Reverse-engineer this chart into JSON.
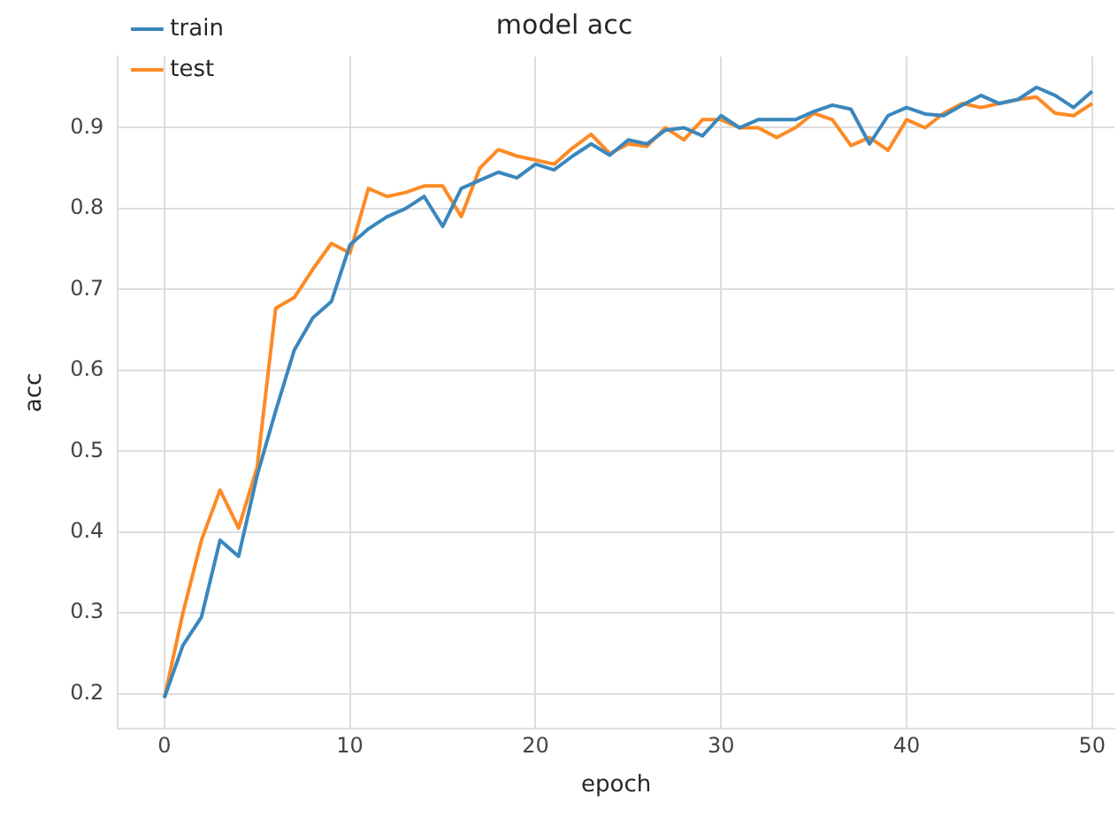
{
  "chart_data": {
    "type": "line",
    "title": "model acc",
    "xlabel": "epoch",
    "ylabel": "acc",
    "x": [
      0,
      1,
      2,
      3,
      4,
      5,
      6,
      7,
      8,
      9,
      10,
      11,
      12,
      13,
      14,
      15,
      16,
      17,
      18,
      19,
      20,
      21,
      22,
      23,
      24,
      25,
      26,
      27,
      28,
      29,
      30,
      31,
      32,
      33,
      34,
      35,
      36,
      37,
      38,
      39,
      40,
      41,
      42,
      43,
      44,
      45,
      46,
      47,
      48,
      49,
      50
    ],
    "series": [
      {
        "name": "train",
        "color": "#3a87bd",
        "values": [
          0.195,
          0.26,
          0.295,
          0.39,
          0.37,
          0.47,
          0.55,
          0.625,
          0.665,
          0.685,
          0.755,
          0.775,
          0.79,
          0.8,
          0.815,
          0.778,
          0.825,
          0.835,
          0.845,
          0.838,
          0.855,
          0.848,
          0.865,
          0.88,
          0.866,
          0.885,
          0.88,
          0.897,
          0.9,
          0.89,
          0.915,
          0.9,
          0.91,
          0.91,
          0.91,
          0.92,
          0.928,
          0.923,
          0.88,
          0.915,
          0.925,
          0.917,
          0.915,
          0.928,
          0.94,
          0.93,
          0.935,
          0.95,
          0.94,
          0.925,
          0.945
        ]
      },
      {
        "name": "test",
        "color": "#fd8a25",
        "values": [
          0.195,
          0.3,
          0.39,
          0.452,
          0.405,
          0.48,
          0.677,
          0.69,
          0.725,
          0.757,
          0.745,
          0.825,
          0.815,
          0.82,
          0.828,
          0.828,
          0.79,
          0.85,
          0.873,
          0.865,
          0.86,
          0.855,
          0.875,
          0.892,
          0.868,
          0.88,
          0.877,
          0.9,
          0.885,
          0.91,
          0.91,
          0.9,
          0.9,
          0.888,
          0.9,
          0.918,
          0.91,
          0.878,
          0.888,
          0.872,
          0.91,
          0.9,
          0.918,
          0.93,
          0.925,
          0.93,
          0.935,
          0.938,
          0.918,
          0.915,
          0.93
        ]
      }
    ],
    "xlim": [
      -2.5,
      51.2
    ],
    "xticks": [
      0,
      10,
      20,
      30,
      40,
      50
    ],
    "ylim": [
      0.157,
      0.988
    ],
    "yticks": [
      0.2,
      0.3,
      0.4,
      0.5,
      0.6,
      0.7,
      0.8,
      0.9
    ],
    "grid": true,
    "legend": "top left",
    "marker": "none",
    "line_style": "solid"
  }
}
